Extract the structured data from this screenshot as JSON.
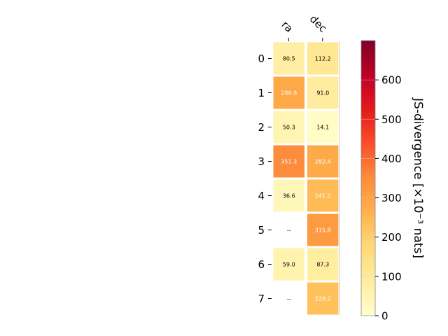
{
  "chart_data": {
    "type": "heatmap",
    "columns": [
      "ra",
      "dec"
    ],
    "rows": [
      "0",
      "1",
      "2",
      "3",
      "4",
      "5",
      "6",
      "7"
    ],
    "values": [
      [
        80.5,
        112.2
      ],
      [
        286.8,
        91.0
      ],
      [
        50.3,
        14.1
      ],
      [
        351.3,
        282.4
      ],
      [
        36.6,
        241.2
      ],
      [
        null,
        315.8
      ],
      [
        59.0,
        87.3
      ],
      [
        null,
        229.2
      ]
    ],
    "cell_labels": [
      [
        "80.5",
        "112.2"
      ],
      [
        "286.8",
        "91.0"
      ],
      [
        "50.3",
        "14.1"
      ],
      [
        "351.3",
        "282.4"
      ],
      [
        "36.6",
        "241.2"
      ],
      [
        "--",
        "315.8"
      ],
      [
        "59.0",
        "87.3"
      ],
      [
        "--",
        "229.2"
      ]
    ],
    "colorbar": {
      "label": "JS-divergence [×10⁻³ nats]",
      "range": [
        0,
        700
      ],
      "ticks": [
        "0",
        "100",
        "200",
        "300",
        "400",
        "500",
        "600"
      ],
      "colormap": "YlOrRd"
    }
  }
}
